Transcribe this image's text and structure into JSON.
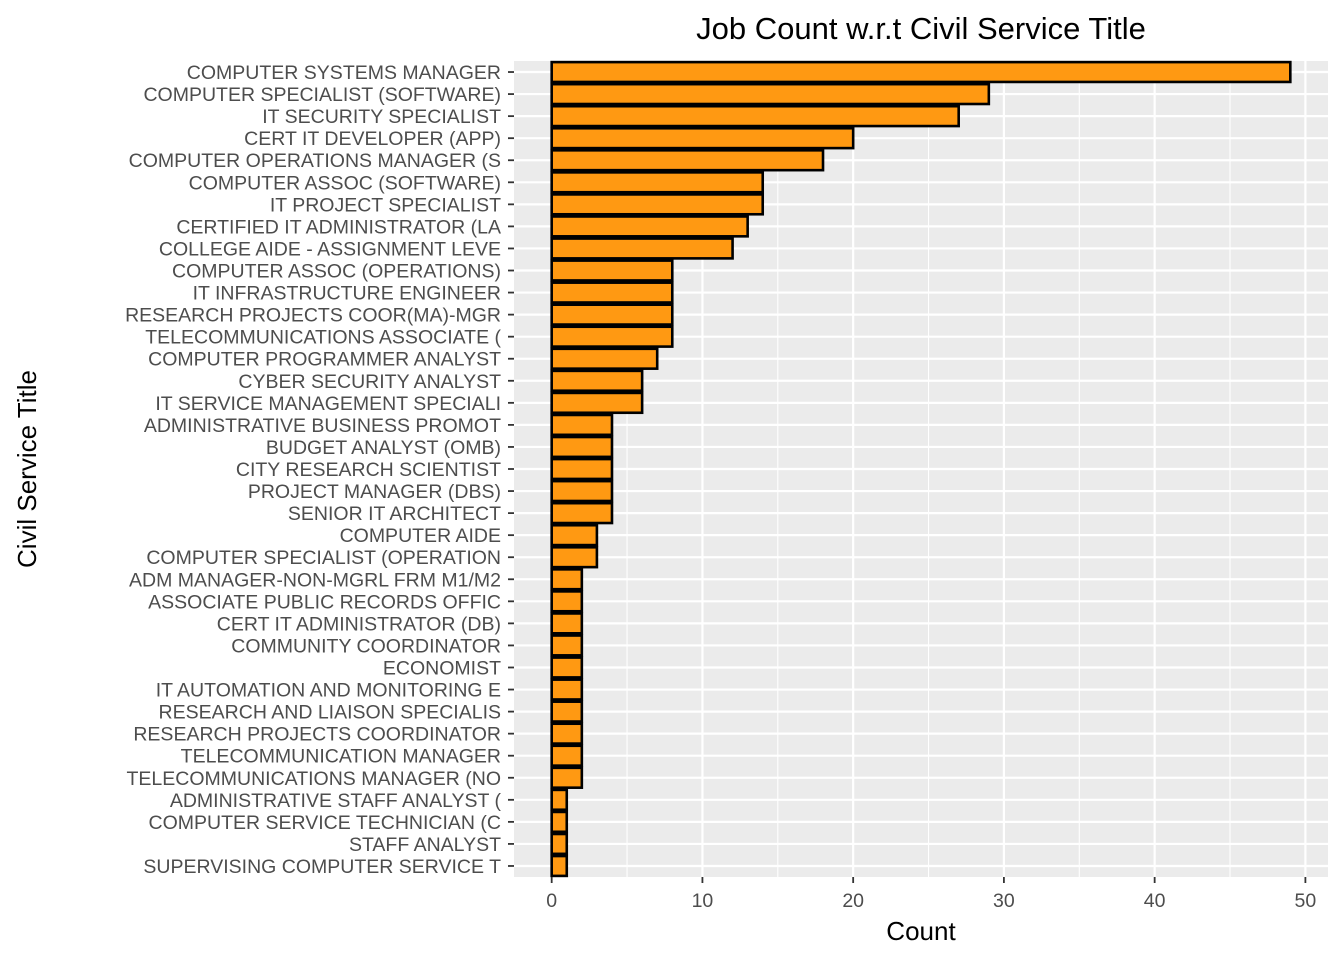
{
  "chart_data": {
    "type": "bar",
    "orientation": "horizontal",
    "title": "Job Count w.r.t Civil Service Title",
    "xlabel": "Count",
    "ylabel": "Civil Service Title",
    "xlim": [
      -2.5,
      51.5
    ],
    "x_ticks": [
      0,
      10,
      20,
      30,
      40,
      50
    ],
    "grid": true,
    "legend": "none",
    "colors": {
      "bar_fill": "#FF9912",
      "bar_outline": "#000000",
      "panel_background": "#EBEBEB",
      "grid_line": "#FFFFFF",
      "tick_text": "#4D4D4D",
      "tick_mark": "#333333"
    },
    "categories": [
      "COMPUTER SYSTEMS MANAGER",
      "COMPUTER SPECIALIST (SOFTWARE)",
      "IT SECURITY SPECIALIST",
      "CERT IT DEVELOPER (APP)",
      "COMPUTER OPERATIONS MANAGER (S",
      "COMPUTER ASSOC (SOFTWARE)",
      "IT PROJECT SPECIALIST",
      "CERTIFIED IT ADMINISTRATOR (LA",
      "COLLEGE AIDE - ASSIGNMENT LEVE",
      "COMPUTER ASSOC (OPERATIONS)",
      "IT INFRASTRUCTURE ENGINEER",
      "RESEARCH PROJECTS COOR(MA)-MGR",
      "TELECOMMUNICATIONS ASSOCIATE (",
      "COMPUTER PROGRAMMER ANALYST",
      "CYBER SECURITY ANALYST",
      "IT SERVICE MANAGEMENT SPECIALI",
      "ADMINISTRATIVE BUSINESS PROMOT",
      "BUDGET ANALYST (OMB)",
      "CITY RESEARCH SCIENTIST",
      "PROJECT MANAGER (DBS)",
      "SENIOR IT ARCHITECT",
      "COMPUTER AIDE",
      "COMPUTER SPECIALIST (OPERATION",
      "ADM MANAGER-NON-MGRL FRM M1/M2",
      "ASSOCIATE PUBLIC RECORDS OFFIC",
      "CERT IT ADMINISTRATOR (DB)",
      "COMMUNITY COORDINATOR",
      "ECONOMIST",
      "IT AUTOMATION AND MONITORING E",
      "RESEARCH AND LIAISON SPECIALIS",
      "RESEARCH PROJECTS COORDINATOR",
      "TELECOMMUNICATION MANAGER",
      "TELECOMMUNICATIONS MANAGER (NO",
      "ADMINISTRATIVE STAFF ANALYST (",
      "COMPUTER SERVICE TECHNICIAN (C",
      "STAFF ANALYST",
      "SUPERVISING COMPUTER SERVICE T"
    ],
    "values": [
      49,
      29,
      27,
      20,
      18,
      14,
      14,
      13,
      12,
      8,
      8,
      8,
      8,
      7,
      6,
      6,
      4,
      4,
      4,
      4,
      4,
      3,
      3,
      2,
      2,
      2,
      2,
      2,
      2,
      2,
      2,
      2,
      2,
      1,
      1,
      1,
      1
    ]
  }
}
